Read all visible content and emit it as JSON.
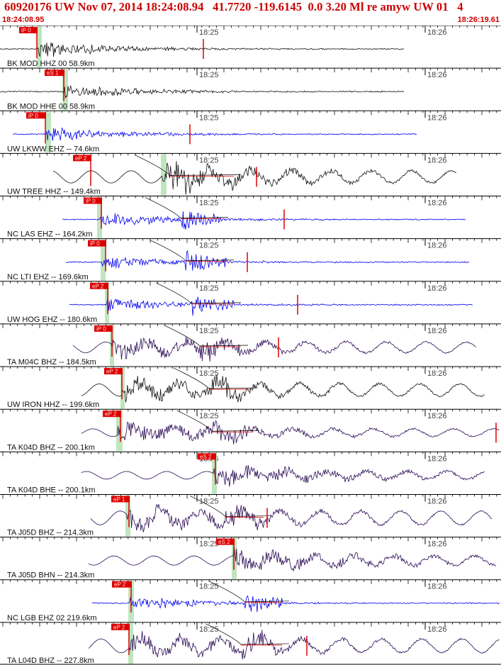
{
  "header": {
    "title": "60920176 UW Nov 07, 2014 18:24:08.94   41.7720 -119.6145  0.0 3.20 Ml re amyw UW 01   4",
    "time_start": "18:24:08.95",
    "time_end": "18:26:19.61"
  },
  "time_marks": [
    "18:25",
    "18:26"
  ],
  "colors": {
    "title": "#cc0000",
    "pick": "#dd0000",
    "window_shade": "#bfe6bf",
    "trace_black": "#111111",
    "trace_blue": "#0000ee",
    "trace_navy": "#2a0a55",
    "theoretical_curve": "#000000",
    "background": "#ffffff"
  },
  "traces": [
    {
      "label": "BK MOD HHZ 00 58.9km",
      "pick": "iP 0",
      "color": "black"
    },
    {
      "label": "BK MOD HHE 00 58.9km",
      "pick": "eS 1",
      "color": "black"
    },
    {
      "label": "UW LKWW EHZ -- 74.6km",
      "pick": "iP 0",
      "color": "blue"
    },
    {
      "label": "UW TREE HHZ -- 149.4km",
      "pick": "eP 2",
      "color": "black"
    },
    {
      "label": "NC LAS EHZ -- 164.2km",
      "pick": "iP 0",
      "color": "blue"
    },
    {
      "label": "NC LTI EHZ -- 169.6km",
      "pick": "iP 0",
      "color": "blue"
    },
    {
      "label": "UW HOG EHZ -- 180.6km",
      "pick": "eP 2",
      "color": "blue"
    },
    {
      "label": "TA M04C BHZ -- 184.5km",
      "pick": "iP 0",
      "color": "navy"
    },
    {
      "label": "UW IRON HHZ -- 199.6km",
      "pick": "eP 2",
      "color": "black"
    },
    {
      "label": "TA K04D BHZ -- 200.1km",
      "pick": "eP 2",
      "color": "navy"
    },
    {
      "label": "TA K04D BHE -- 200.1km",
      "pick": "eS 2",
      "color": "navy"
    },
    {
      "label": "TA J05D BHZ -- 214.3km",
      "pick": "eP 1",
      "color": "navy"
    },
    {
      "label": "TA J05D BHN -- 214.3km",
      "pick": "eS 2",
      "color": "navy"
    },
    {
      "label": "NC LGB EHZ 02 219.6km",
      "pick": "eP 2",
      "color": "blue"
    },
    {
      "label": "TA L04D BHZ -- 227.8km",
      "pick": "eP 2",
      "color": "navy"
    }
  ]
}
